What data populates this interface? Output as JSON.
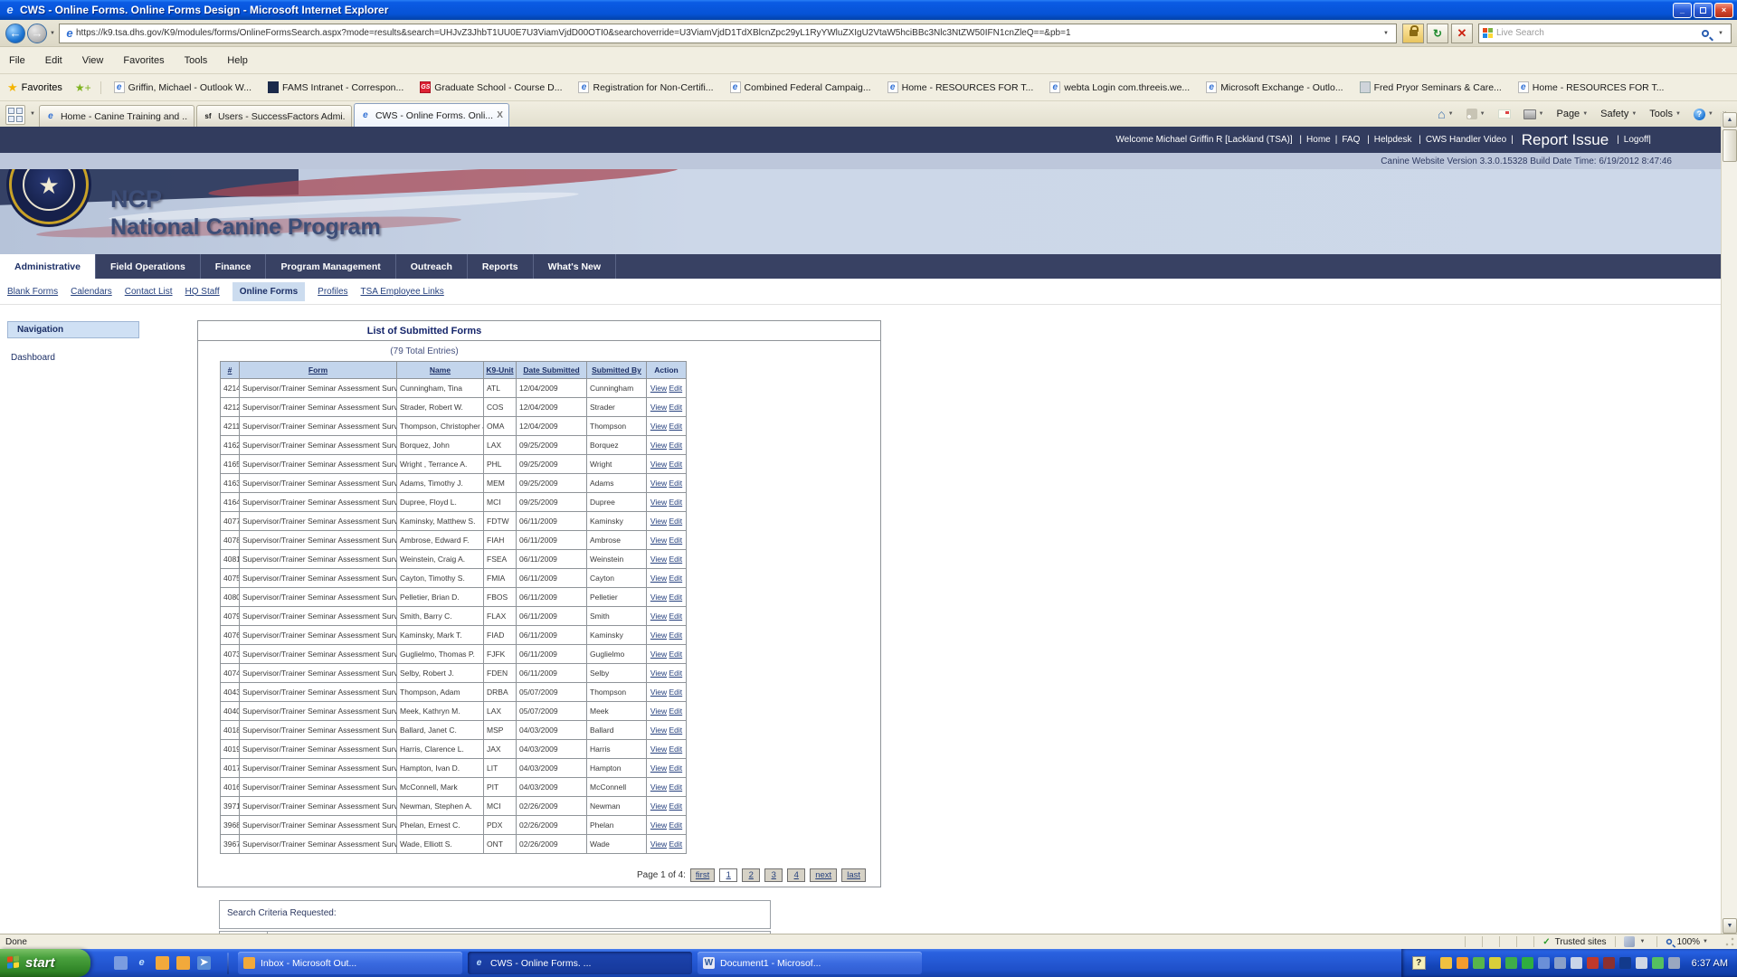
{
  "window": {
    "title": "CWS - Online Forms. Online Forms Design - Microsoft Internet Explorer"
  },
  "browser": {
    "url": "https://k9.tsa.dhs.gov/K9/modules/forms/OnlineFormsSearch.aspx?mode=results&search=UHJvZ3JhbT1UU0E7U3ViamVjdD00OTI0&searchoverride=U3ViamVjdD1TdXBlcnZpc29yL1RyYWluZXIgU2VtaW5hciBBc3Nlc3NtZW50IFN1cnZleQ==&pb=1",
    "search_placeholder": "Live Search",
    "menu": [
      "File",
      "Edit",
      "View",
      "Favorites",
      "Tools",
      "Help"
    ],
    "favorites_label": "Favorites",
    "favorites": [
      {
        "label": "Griffin, Michael - Outlook W...",
        "icon": "ie-page-icon"
      },
      {
        "label": "FAMS Intranet - Correspon...",
        "icon": "fams-icon"
      },
      {
        "label": "Graduate School - Course D...",
        "icon": "graduate-school-icon"
      },
      {
        "label": "Registration for Non-Certifi...",
        "icon": "ie-page-icon"
      },
      {
        "label": "Combined Federal Campaig...",
        "icon": "ie-page-icon"
      },
      {
        "label": "Home - RESOURCES FOR T...",
        "icon": "ie-page-icon"
      },
      {
        "label": "webta Login com.threeis.we...",
        "icon": "ie-page-icon"
      },
      {
        "label": "Microsoft Exchange - Outlo...",
        "icon": "ie-page-icon"
      },
      {
        "label": "Fred Pryor Seminars & Care...",
        "icon": "fred-pryor-icon"
      },
      {
        "label": "Home - RESOURCES FOR T...",
        "icon": "ie-page-icon"
      }
    ],
    "tabs": [
      {
        "label": "Home - Canine Training and ...",
        "icon": "ie-favicon",
        "active": false
      },
      {
        "label": "Users - SuccessFactors Admi...",
        "icon": "successfactors-favicon",
        "active": false
      },
      {
        "label": "CWS - Online Forms. Onli...",
        "icon": "ie-favicon",
        "active": true,
        "close_glyph": "X"
      }
    ],
    "command_labels": {
      "page": "Page",
      "safety": "Safety",
      "tools": "Tools",
      "overflow": "»"
    }
  },
  "site": {
    "welcome": "Welcome Michael Griffin R [Lackland (TSA)]",
    "header_links": [
      "Home",
      "FAQ",
      "Helpdesk",
      "CWS Handler Video"
    ],
    "report_issue": "Report Issue",
    "logoff": "Logoff|",
    "version_line": "Canine Website Version 3.3.0.15328 Build Date Time: 6/19/2012 8:47:46",
    "logo_acronym": "NCP",
    "logo_title": "National Canine Program",
    "nav": [
      {
        "label": "Administrative",
        "active": true
      },
      {
        "label": "Field Operations",
        "active": false
      },
      {
        "label": "Finance",
        "active": false
      },
      {
        "label": "Program Management",
        "active": false
      },
      {
        "label": "Outreach",
        "active": false
      },
      {
        "label": "Reports",
        "active": false
      },
      {
        "label": "What's New",
        "active": false
      }
    ],
    "subnav": [
      {
        "label": "Blank Forms",
        "active": false
      },
      {
        "label": "Calendars",
        "active": false
      },
      {
        "label": "Contact List",
        "active": false
      },
      {
        "label": "HQ Staff",
        "active": false
      },
      {
        "label": "Online Forms",
        "active": true
      },
      {
        "label": "Profiles",
        "active": false
      },
      {
        "label": "TSA Employee Links",
        "active": false
      }
    ],
    "sidebar": {
      "title": "Navigation",
      "items": [
        "Dashboard"
      ]
    }
  },
  "forms_table": {
    "title": "List of Submitted Forms",
    "total": "(79 Total Entries)",
    "columns": [
      "#",
      "Form",
      "Name",
      "K9-Unit",
      "Date Submitted",
      "Submitted By",
      "Action"
    ],
    "action_links": [
      "View",
      "Edit"
    ],
    "rows": [
      {
        "id": "4214",
        "form": "Supervisor/Trainer Seminar Assessment Survey",
        "name": "Cunningham, Tina",
        "unit": "ATL",
        "date": "12/04/2009",
        "by": "Cunningham"
      },
      {
        "id": "4212",
        "form": "Supervisor/Trainer Seminar Assessment Survey",
        "name": "Strader, Robert W.",
        "unit": "COS",
        "date": "12/04/2009",
        "by": "Strader"
      },
      {
        "id": "4211",
        "form": "Supervisor/Trainer Seminar Assessment Survey",
        "name": "Thompson, Christopher J.",
        "unit": "OMA",
        "date": "12/04/2009",
        "by": "Thompson"
      },
      {
        "id": "4162",
        "form": "Supervisor/Trainer Seminar Assessment Survey",
        "name": "Borquez, John",
        "unit": "LAX",
        "date": "09/25/2009",
        "by": "Borquez"
      },
      {
        "id": "4165",
        "form": "Supervisor/Trainer Seminar Assessment Survey",
        "name": "Wright , Terrance A.",
        "unit": "PHL",
        "date": "09/25/2009",
        "by": "Wright"
      },
      {
        "id": "4163",
        "form": "Supervisor/Trainer Seminar Assessment Survey",
        "name": "Adams, Timothy J.",
        "unit": "MEM",
        "date": "09/25/2009",
        "by": "Adams"
      },
      {
        "id": "4164",
        "form": "Supervisor/Trainer Seminar Assessment Survey",
        "name": "Dupree, Floyd L.",
        "unit": "MCI",
        "date": "09/25/2009",
        "by": "Dupree"
      },
      {
        "id": "4077",
        "form": "Supervisor/Trainer Seminar Assessment Survey",
        "name": "Kaminsky, Matthew S.",
        "unit": "FDTW",
        "date": "06/11/2009",
        "by": "Kaminsky"
      },
      {
        "id": "4078",
        "form": "Supervisor/Trainer Seminar Assessment Survey",
        "name": "Ambrose, Edward F.",
        "unit": "FIAH",
        "date": "06/11/2009",
        "by": "Ambrose"
      },
      {
        "id": "4081",
        "form": "Supervisor/Trainer Seminar Assessment Survey",
        "name": "Weinstein, Craig A.",
        "unit": "FSEA",
        "date": "06/11/2009",
        "by": "Weinstein"
      },
      {
        "id": "4075",
        "form": "Supervisor/Trainer Seminar Assessment Survey",
        "name": "Cayton, Timothy S.",
        "unit": "FMIA",
        "date": "06/11/2009",
        "by": "Cayton"
      },
      {
        "id": "4080",
        "form": "Supervisor/Trainer Seminar Assessment Survey",
        "name": "Pelletier, Brian D.",
        "unit": "FBOS",
        "date": "06/11/2009",
        "by": "Pelletier"
      },
      {
        "id": "4079",
        "form": "Supervisor/Trainer Seminar Assessment Survey",
        "name": "Smith, Barry C.",
        "unit": "FLAX",
        "date": "06/11/2009",
        "by": "Smith"
      },
      {
        "id": "4076",
        "form": "Supervisor/Trainer Seminar Assessment Survey",
        "name": "Kaminsky, Mark T.",
        "unit": "FIAD",
        "date": "06/11/2009",
        "by": "Kaminsky"
      },
      {
        "id": "4073",
        "form": "Supervisor/Trainer Seminar Assessment Survey",
        "name": "Guglielmo, Thomas P.",
        "unit": "FJFK",
        "date": "06/11/2009",
        "by": "Guglielmo"
      },
      {
        "id": "4074",
        "form": "Supervisor/Trainer Seminar Assessment Survey",
        "name": "Selby, Robert J.",
        "unit": "FDEN",
        "date": "06/11/2009",
        "by": "Selby"
      },
      {
        "id": "4043",
        "form": "Supervisor/Trainer Seminar Assessment Survey",
        "name": "Thompson, Adam",
        "unit": "DRBA",
        "date": "05/07/2009",
        "by": "Thompson"
      },
      {
        "id": "4040",
        "form": "Supervisor/Trainer Seminar Assessment Survey",
        "name": "Meek, Kathryn M.",
        "unit": "LAX",
        "date": "05/07/2009",
        "by": "Meek"
      },
      {
        "id": "4018",
        "form": "Supervisor/Trainer Seminar Assessment Survey",
        "name": "Ballard, Janet C.",
        "unit": "MSP",
        "date": "04/03/2009",
        "by": "Ballard"
      },
      {
        "id": "4019",
        "form": "Supervisor/Trainer Seminar Assessment Survey",
        "name": "Harris, Clarence L.",
        "unit": "JAX",
        "date": "04/03/2009",
        "by": "Harris"
      },
      {
        "id": "4017",
        "form": "Supervisor/Trainer Seminar Assessment Survey",
        "name": "Hampton, Ivan D.",
        "unit": "LIT",
        "date": "04/03/2009",
        "by": "Hampton"
      },
      {
        "id": "4016",
        "form": "Supervisor/Trainer Seminar Assessment Survey",
        "name": "McConnell, Mark",
        "unit": "PIT",
        "date": "04/03/2009",
        "by": "McConnell"
      },
      {
        "id": "3971",
        "form": "Supervisor/Trainer Seminar Assessment Survey",
        "name": "Newman, Stephen A.",
        "unit": "MCI",
        "date": "02/26/2009",
        "by": "Newman"
      },
      {
        "id": "3968",
        "form": "Supervisor/Trainer Seminar Assessment Survey",
        "name": "Phelan, Ernest C.",
        "unit": "PDX",
        "date": "02/26/2009",
        "by": "Phelan"
      },
      {
        "id": "3967",
        "form": "Supervisor/Trainer Seminar Assessment Survey",
        "name": "Wade, Elliott S.",
        "unit": "ONT",
        "date": "02/26/2009",
        "by": "Wade"
      }
    ],
    "pagination": {
      "label": "Page 1 of 4:",
      "buttons": [
        "first",
        "1",
        "2",
        "3",
        "4",
        "next",
        "last"
      ],
      "current": "1"
    },
    "search_criteria_label": "Search Criteria Requested:"
  },
  "status_bar": {
    "text": "Done",
    "zone": "Trusted sites",
    "zoom": "100%"
  },
  "taskbar": {
    "start_label": "start",
    "quick_launch": [
      {
        "name": "msn-icon",
        "color": "#7a9ce0",
        "glyph": ""
      },
      {
        "name": "ie-icon",
        "color": "transparent",
        "glyph": "e"
      },
      {
        "name": "outlook-shortcut-icon",
        "color": "#f2a93b",
        "glyph": ""
      },
      {
        "name": "outlook-calendar-icon",
        "color": "#f2a93b",
        "glyph": ""
      },
      {
        "name": "send-to-icon",
        "color": "#5b8dd6",
        "glyph": "➤"
      }
    ],
    "tasks": [
      {
        "label": "Inbox - Microsoft Out...",
        "icon": "outlook-task-icon",
        "icon_color": "#f2a93b",
        "glyph": "",
        "active": false
      },
      {
        "label": "CWS - Online Forms. ...",
        "icon": "ie-task-icon",
        "icon_color": "transparent",
        "glyph": "e",
        "active": true
      },
      {
        "label": "Document1 - Microsof...",
        "icon": "word-task-icon",
        "icon_color": "#e8e8f4",
        "glyph": "W",
        "active": false
      }
    ],
    "clock": "6:37 AM",
    "tray_icons": [
      {
        "name": "mail-envelope-icon",
        "color": "#f0c040"
      },
      {
        "name": "outlook-reminder-icon",
        "color": "#f49c2d"
      },
      {
        "name": "id-badge-icon",
        "color": "#58b54a"
      },
      {
        "name": "run-prompt-icon",
        "color": "#d8cf3a"
      },
      {
        "name": "sync-arrows-icon",
        "color": "#3fae49"
      },
      {
        "name": "network-signal-icon",
        "color": "#2fae3f"
      },
      {
        "name": "network-computers-icon",
        "color": "#6a8fd8"
      },
      {
        "name": "network-disconnected-icon",
        "color": "#8aa0c8"
      },
      {
        "name": "search-magnifier-icon",
        "color": "#c8d4e8"
      },
      {
        "name": "mcafee-shield-icon",
        "color": "#c0392b"
      },
      {
        "name": "browser-tray-icon",
        "color": "#8c3030"
      },
      {
        "name": "info-icon",
        "color": "#123a8c"
      },
      {
        "name": "volume-icon",
        "color": "#cfd6e4"
      },
      {
        "name": "vpn-icon",
        "color": "#55c060"
      },
      {
        "name": "display-icon",
        "color": "#9aa8c0"
      }
    ]
  },
  "colors": {
    "xp_titlebar_blue": "#0653d6",
    "taskbar_blue": "#2a62e0",
    "start_green": "#3d8c2e",
    "site_header_navy": "#323c5e",
    "version_band": "#bdc7db",
    "table_header_bg": "#c3d5ec",
    "link_navy": "#26417e",
    "chrome_tan": "#f1eee1",
    "subnav_active_bg": "#ccdcef"
  }
}
